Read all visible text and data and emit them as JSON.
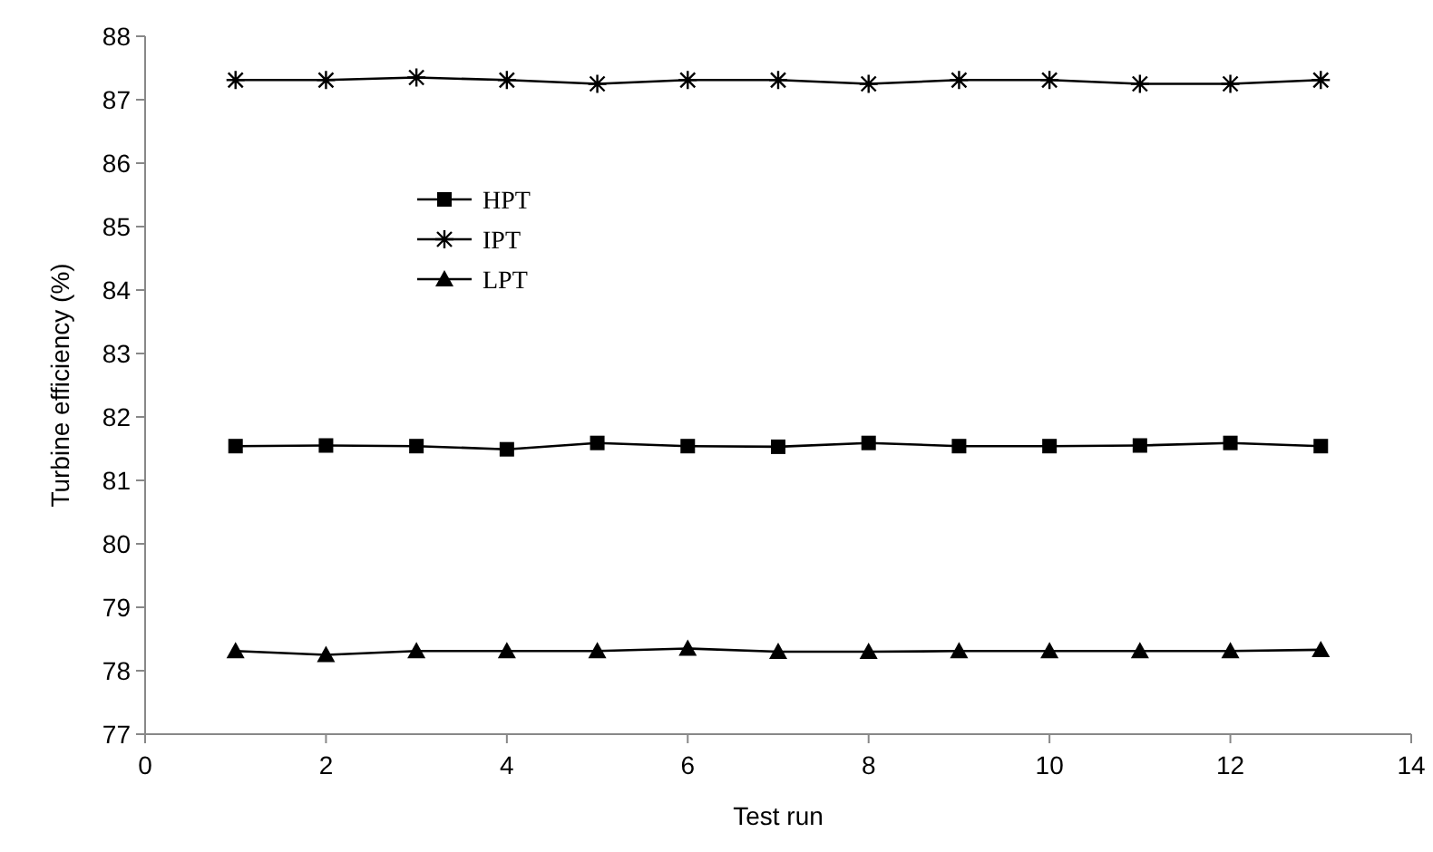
{
  "chart_data": {
    "type": "line",
    "xlabel": "Test run",
    "ylabel": "Turbine efficiency (%)",
    "x": [
      1,
      2,
      3,
      4,
      5,
      6,
      7,
      8,
      9,
      10,
      11,
      12,
      13
    ],
    "series": [
      {
        "name": "HPT",
        "color": "#000000",
        "marker": "square",
        "values": [
          81.54,
          81.55,
          81.54,
          81.49,
          81.59,
          81.54,
          81.53,
          81.59,
          81.54,
          81.54,
          81.55,
          81.59,
          81.54
        ]
      },
      {
        "name": "IPT",
        "color": "#000000",
        "marker": "cross",
        "values": [
          87.31,
          87.31,
          87.35,
          87.31,
          87.25,
          87.31,
          87.31,
          87.25,
          87.31,
          87.31,
          87.25,
          87.25,
          87.31
        ]
      },
      {
        "name": "LPT",
        "color": "#000000",
        "marker": "triangle",
        "values": [
          78.31,
          78.25,
          78.31,
          78.31,
          78.31,
          78.35,
          78.3,
          78.3,
          78.31,
          78.31,
          78.31,
          78.31,
          78.33
        ]
      }
    ],
    "xlim": [
      0,
      14
    ],
    "xticks": [
      0,
      2,
      4,
      6,
      8,
      10,
      12,
      14
    ],
    "ylim": [
      77,
      88
    ],
    "yticks": [
      77,
      78,
      79,
      80,
      81,
      82,
      83,
      84,
      85,
      86,
      87,
      88
    ],
    "grid": false,
    "legend": "top left"
  }
}
